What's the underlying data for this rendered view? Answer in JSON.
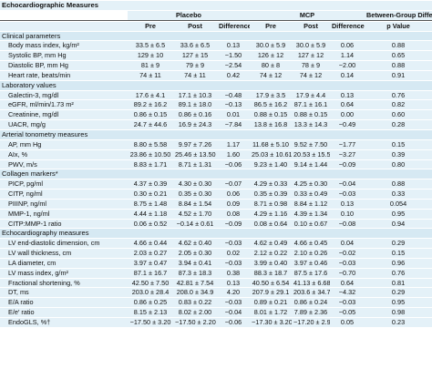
{
  "table": {
    "title": "Echocardiographic Measures",
    "groups": [
      "Placebo",
      "MCP",
      "Between-Group Difference"
    ],
    "columns": [
      "Pre",
      "Post",
      "Difference",
      "Pre",
      "Post",
      "Difference",
      "p Value"
    ],
    "sections": [
      {
        "name": "Clinical parameters",
        "rows": [
          [
            "Body mass index, kg/m²",
            "33.5 ± 6.5",
            "33.6 ± 6.5",
            "0.13",
            "30.0 ± 5.9",
            "30.0 ± 5.9",
            "0.06",
            "0.88"
          ],
          [
            "Systolic BP, mm Hg",
            "129 ± 10",
            "127 ± 15",
            "−1.50",
            "126 ± 12",
            "127 ± 12",
            "1.14",
            "0.65"
          ],
          [
            "Diastolic BP, mm Hg",
            "81 ± 9",
            "79 ± 9",
            "−2.54",
            "80 ± 8",
            "78 ± 9",
            "−2.00",
            "0.88"
          ],
          [
            "Heart rate, beats/min",
            "74 ± 11",
            "74 ± 11",
            "0.42",
            "74 ± 12",
            "74 ± 12",
            "0.14",
            "0.91"
          ]
        ]
      },
      {
        "name": "Laboratory values",
        "rows": [
          [
            "Galectin-3, mg/dl",
            "17.6 ± 4.1",
            "17.1 ± 10.3",
            "−0.48",
            "17.9 ± 3.5",
            "17.9 ± 4.4",
            "0.13",
            "0.76"
          ],
          [
            "eGFR, ml/min/1.73 m²",
            "89.2 ± 16.2",
            "89.1 ± 18.0",
            "−0.13",
            "86.5 ± 16.2",
            "87.1 ± 16.1",
            "0.64",
            "0.82"
          ],
          [
            "Creatinine, mg/dl",
            "0.86 ± 0.15",
            "0.86 ± 0.16",
            "0.01",
            "0.88 ± 0.15",
            "0.88 ± 0.15",
            "0.00",
            "0.60"
          ],
          [
            "UACR, mg/g",
            "24.7 ± 44.6",
            "16.9 ± 24.3",
            "−7.84",
            "13.8 ± 16.8",
            "13.3 ± 14.3",
            "−0.49",
            "0.28"
          ]
        ]
      },
      {
        "name": "Arterial tonometry measures",
        "rows": [
          [
            "AP, mm Hg",
            "8.80 ± 5.58",
            "9.97 ± 7.26",
            "1.17",
            "11.68 ± 5.10",
            "9.52 ± 7.50",
            "−1.77",
            "0.15"
          ],
          [
            "AIx, %",
            "23.86 ± 10.50",
            "25.46 ± 13.50",
            "1.60",
            "25.03 ± 10.61",
            "20.53 ± 15.59",
            "−3.27",
            "0.39"
          ],
          [
            "PWV, m/s",
            "8.83 ± 1.71",
            "8.71 ± 1.31",
            "−0.06",
            "9.23 ± 1.40",
            "9.14 ± 1.44",
            "−0.09",
            "0.80"
          ]
        ]
      },
      {
        "name": "Collagen markers*",
        "rows": [
          [
            "PICP, pg/ml",
            "4.37 ± 0.39",
            "4.30 ± 0.30",
            "−0.07",
            "4.29 ± 0.33",
            "4.25 ± 0.30",
            "−0.04",
            "0.88"
          ],
          [
            "CITP, ng/ml",
            "0.30 ± 0.21",
            "0.35 ± 0.30",
            "0.06",
            "0.35 ± 0.39",
            "0.33 ± 0.49",
            "−0.03",
            "0.33"
          ],
          [
            "PIIINP, ng/ml",
            "8.75 ± 1.48",
            "8.84 ± 1.54",
            "0.09",
            "8.71 ± 0.98",
            "8.84 ± 1.12",
            "0.13",
            "0.054"
          ],
          [
            "MMP-1, ng/ml",
            "4.44 ± 1.18",
            "4.52 ± 1.70",
            "0.08",
            "4.29 ± 1.16",
            "4.39 ± 1.34",
            "0.10",
            "0.95"
          ],
          [
            "CITP:MMP-1 ratio",
            "0.06 ± 0.52",
            "−0.14 ± 0.61",
            "−0.09",
            "0.08 ± 0.64",
            "0.10 ± 0.67",
            "−0.08",
            "0.94"
          ]
        ]
      },
      {
        "name": "Echocardiography measures",
        "rows": [
          [
            "LV end-diastolic dimension, cm",
            "4.66 ± 0.44",
            "4.62 ± 0.40",
            "−0.03",
            "4.62 ± 0.49",
            "4.66 ± 0.45",
            "0.04",
            "0.29"
          ],
          [
            "LV wall thickness, cm",
            "2.03 ± 0.27",
            "2.05 ± 0.30",
            "0.02",
            "2.12 ± 0.22",
            "2.10 ± 0.26",
            "−0.02",
            "0.15"
          ],
          [
            "LA diameter, cm",
            "3.97 ± 0.47",
            "3.94 ± 0.41",
            "−0.03",
            "3.99 ± 0.40",
            "3.97 ± 0.46",
            "−0.03",
            "0.96"
          ],
          [
            "LV mass index, g/m²",
            "87.1 ± 16.7",
            "87.3 ± 18.3",
            "0.38",
            "88.3 ± 18.7",
            "87.5 ± 17.6",
            "−0.70",
            "0.76"
          ],
          [
            "Fractional shortening, %",
            "42.50 ± 7.50",
            "42.81 ± 7.54",
            "0.13",
            "40.50 ± 6.54",
            "41.13 ± 6.68",
            "0.64",
            "0.81"
          ],
          [
            "DT, ms",
            "203.0 ± 28.4",
            "208.0 ± 34.9",
            "4.20",
            "207.9 ± 29.1",
            "203.6 ± 34.7",
            "−4.32",
            "0.29"
          ],
          [
            "E/A ratio",
            "0.86 ± 0.25",
            "0.83 ± 0.22",
            "−0.03",
            "0.89 ± 0.21",
            "0.86 ± 0.24",
            "−0.03",
            "0.95"
          ],
          [
            "E/e′ ratio",
            "8.15 ± 2.13",
            "8.02 ± 2.00",
            "−0.04",
            "8.01 ± 1.72",
            "7.89 ± 2.36",
            "−0.05",
            "0.98"
          ],
          [
            "EndoGLS, %†",
            "−17.50 ± 3.20",
            "−17.50 ± 2.20",
            "−0.06",
            "−17.30 ± 3.20",
            "−17.20 ± 2.90",
            "0.05",
            "0.23"
          ]
        ]
      }
    ]
  }
}
